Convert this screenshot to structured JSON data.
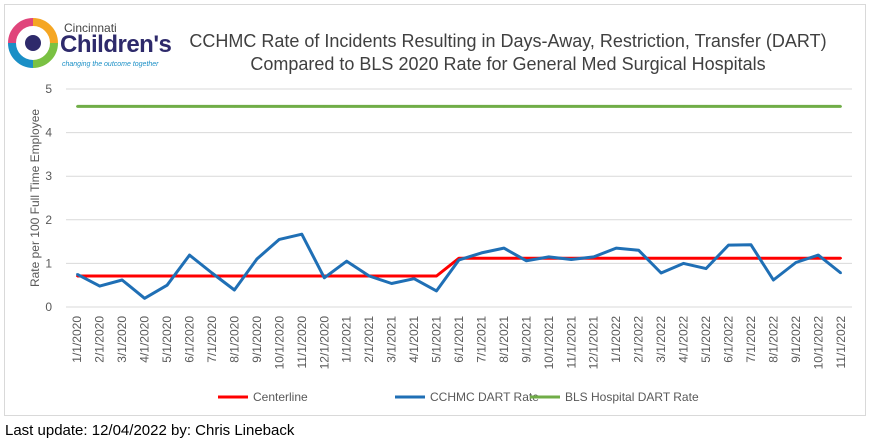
{
  "logo": {
    "line1": "Cincinnati",
    "line2": "Children's",
    "tagline": "changing the outcome together"
  },
  "footer": "Last update: 12/04/2022 by: Chris Lineback",
  "chart_data": {
    "type": "line",
    "title": "CCHMC Rate of Incidents Resulting in Days-Away, Restriction, Transfer (DART) Compared to BLS 2020 Rate for General Med Surgical Hospitals",
    "title_lines": [
      "CCHMC Rate of Incidents Resulting in Days-Away, Restriction, Transfer (DART)",
      "Compared to BLS 2020 Rate for General Med Surgical Hospitals"
    ],
    "xlabel": "",
    "ylabel": "Rate per 100 Full Time Employee",
    "ylim": [
      0,
      5
    ],
    "yticks": [
      "0",
      "1",
      "2",
      "3",
      "4",
      "5"
    ],
    "grid": true,
    "legend_position": "bottom",
    "categories": [
      "1/1/2020",
      "2/1/2020",
      "3/1/2020",
      "4/1/2020",
      "5/1/2020",
      "6/1/2020",
      "7/1/2020",
      "8/1/2020",
      "9/1/2020",
      "10/1/2020",
      "11/1/2020",
      "12/1/2020",
      "1/1/2021",
      "2/1/2021",
      "3/1/2021",
      "4/1/2021",
      "5/1/2021",
      "6/1/2021",
      "7/1/2021",
      "8/1/2021",
      "9/1/2021",
      "10/1/2021",
      "11/1/2021",
      "12/1/2021",
      "1/1/2022",
      "2/1/2022",
      "3/1/2022",
      "4/1/2022",
      "5/1/2022",
      "6/1/2022",
      "7/1/2022",
      "8/1/2022",
      "9/1/2022",
      "10/1/2022",
      "11/1/2022"
    ],
    "series": [
      {
        "name": "Centerline",
        "color": "#ff0000",
        "values": [
          0.71,
          0.71,
          0.71,
          0.71,
          0.71,
          0.71,
          0.71,
          0.71,
          0.71,
          0.71,
          0.71,
          0.71,
          0.71,
          0.71,
          0.71,
          0.71,
          0.71,
          1.12,
          1.12,
          1.12,
          1.12,
          1.12,
          1.12,
          1.12,
          1.12,
          1.12,
          1.12,
          1.12,
          1.12,
          1.12,
          1.12,
          1.12,
          1.12,
          1.12,
          1.12
        ]
      },
      {
        "name": "CCHMC DART Rate",
        "color": "#1f6fb5",
        "values": [
          0.75,
          0.48,
          0.62,
          0.2,
          0.5,
          1.19,
          0.78,
          0.39,
          1.1,
          1.55,
          1.67,
          0.67,
          1.05,
          0.71,
          0.54,
          0.65,
          0.37,
          1.08,
          1.24,
          1.35,
          1.06,
          1.15,
          1.09,
          1.15,
          1.35,
          1.3,
          0.78,
          1.0,
          0.88,
          1.42,
          1.43,
          0.62,
          1.02,
          1.19,
          0.78
        ]
      },
      {
        "name": "BLS Hospital DART Rate",
        "color": "#70ad47",
        "values": [
          4.6,
          4.6,
          4.6,
          4.6,
          4.6,
          4.6,
          4.6,
          4.6,
          4.6,
          4.6,
          4.6,
          4.6,
          4.6,
          4.6,
          4.6,
          4.6,
          4.6,
          4.6,
          4.6,
          4.6,
          4.6,
          4.6,
          4.6,
          4.6,
          4.6,
          4.6,
          4.6,
          4.6,
          4.6,
          4.6,
          4.6,
          4.6,
          4.6,
          4.6,
          4.6
        ]
      }
    ]
  }
}
